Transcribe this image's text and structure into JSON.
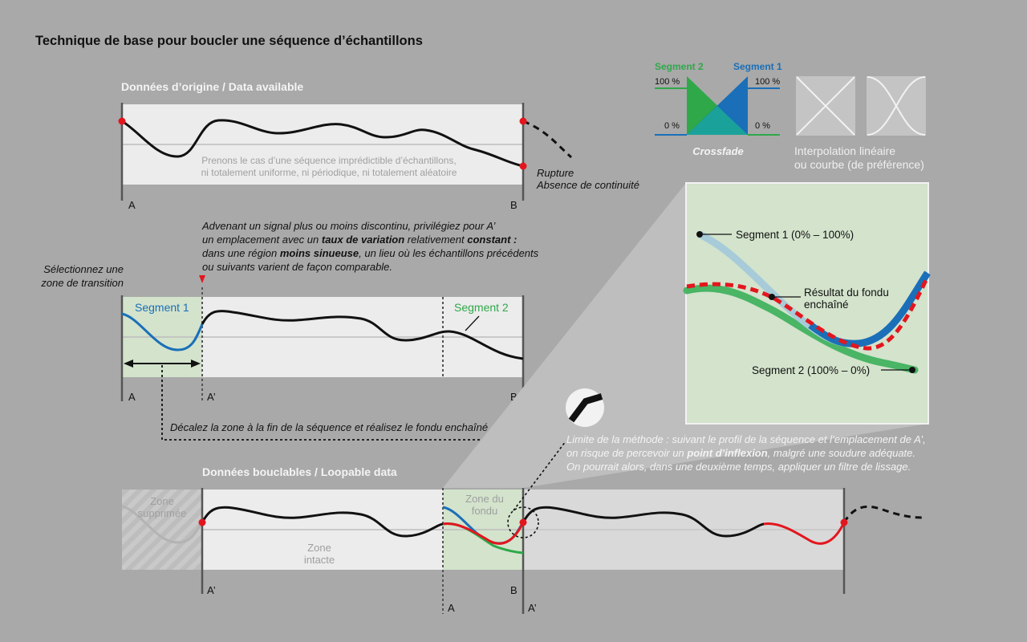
{
  "title": "Technique de base pour boucler une séquence d’échantillons",
  "panel_original": {
    "heading": "Données d’origine / Data available",
    "caption_line1": "Prenons le cas d’une séquence imprédictible d’échantillons,",
    "caption_line2": "ni totalement uniforme, ni périodique, ni totalement aléatoire",
    "label_a": "A",
    "label_b": "B",
    "rupture_line1": "Rupture",
    "rupture_line2": "Absence de continuité"
  },
  "crossfade": {
    "segment2_label": "Segment 2",
    "segment1_label": "Segment 1",
    "pct_100_left": "100 %",
    "pct_100_right": "100 %",
    "pct_0_left": "0 %",
    "pct_0_right": "0 %",
    "caption": "Crossfade",
    "interp_line1": "Interpolation linéaire",
    "interp_line2": "ou courbe (de préférence)"
  },
  "advice": {
    "l1_a": "Advenant un signal plus ou moins discontinu, privilégiez pour A’",
    "l2_a": "un emplacement avec un ",
    "l2_b": "taux de variation",
    "l2_c": " relativement ",
    "l2_d": "constant :",
    "l3_a": "dans une région ",
    "l3_b": "moins sinueuse",
    "l3_c": ", un lieu où les échantillons précédents",
    "l4": "ou suivants varient de façon comparable."
  },
  "select_zone": {
    "line1": "Sélectionnez une",
    "line2": "zone de transition"
  },
  "panel_select": {
    "segment1": "Segment 1",
    "segment2": "Segment 2",
    "label_a": "A",
    "label_a_prime": "A’",
    "label_b": "B"
  },
  "shift_text": "Décalez la zone à la fin de la séquence et réalisez le fondu enchaîné",
  "zoom": {
    "segment1": "Segment 1 (0% – 100%)",
    "result_line1": "Résultat du fondu",
    "result_line2": "enchaîné",
    "segment2": "Segment 2 (100% – 0%)"
  },
  "limit": {
    "l1": "Limite de la méthode : suivant le profil de la séquence et l’emplacement de A’,",
    "l2_a": "on risque de percevoir un ",
    "l2_b": "point d’inflexion",
    "l2_c": ", malgré une soudure adéquate.",
    "l3": "On pourrait alors, dans une deuxième temps, appliquer un filtre de lissage."
  },
  "panel_loop": {
    "heading": "Données bouclables / Loopable data",
    "zone_supprimee_1": "Zone",
    "zone_supprimee_2": "supprimée",
    "zone_intacte_1": "Zone",
    "zone_intacte_2": "intacte",
    "zone_fondu_1": "Zone du",
    "zone_fondu_2": "fondu",
    "label_a_prime_left": "A’",
    "label_a": "A",
    "label_b": "B",
    "label_a_prime_right": "A’"
  },
  "colors": {
    "background": "#a9a9a9",
    "panel": "#ececec",
    "transition_zone": "#d3e3cc",
    "segment1_blue": "#1a6fb8",
    "segment2_green": "#2fa84a",
    "result_red": "#e3161e",
    "curve_black": "#111111"
  }
}
